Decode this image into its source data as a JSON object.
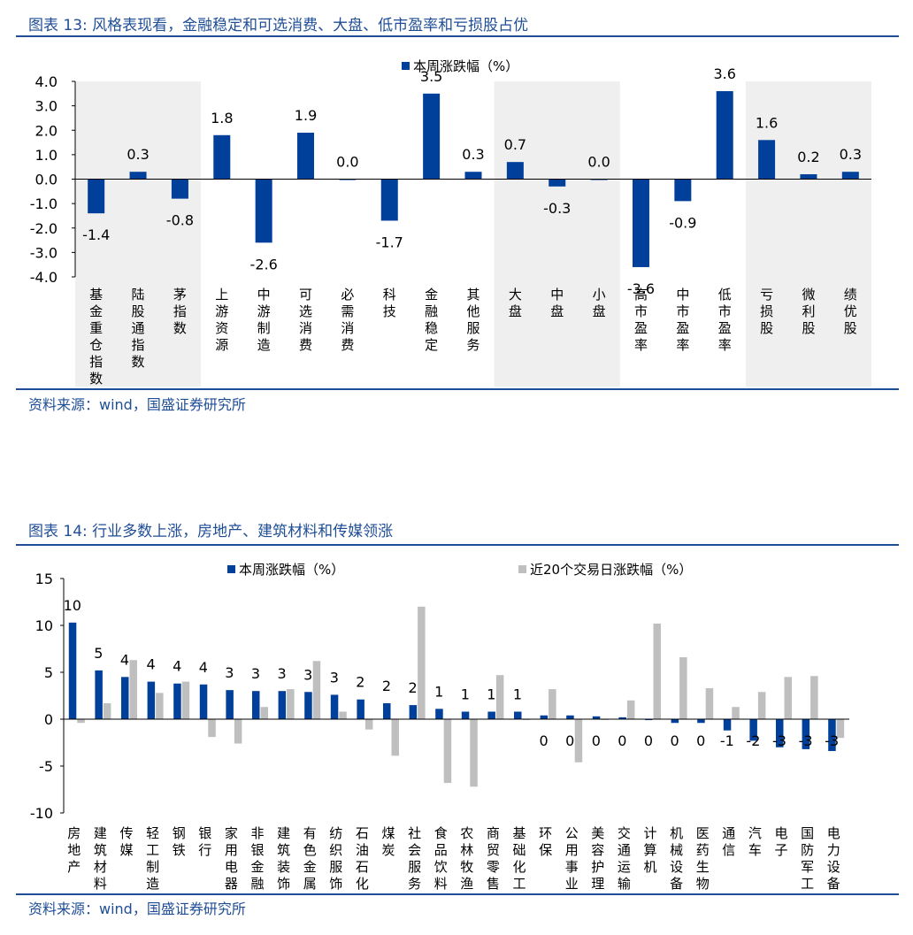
{
  "chart13": {
    "title": "图表 13:  风格表现看，金融稳定和可选消费、大盘、低市盈率和亏损股占优",
    "source": "资料来源：wind，国盛证券研究所",
    "chart_data": {
      "type": "bar",
      "legend": [
        "本周涨跌幅（%）"
      ],
      "categories": [
        "基金重仓指数",
        "陆股通指数",
        "茅指数",
        "上游资源",
        "中游制造",
        "可选消费",
        "必需消费",
        "科技",
        "金融稳定",
        "其他服务",
        "大盘",
        "中盘",
        "小盘",
        "高市盈率",
        "中市盈率",
        "低市盈率",
        "亏损股",
        "微利股",
        "绩优股"
      ],
      "values": [
        -1.4,
        0.3,
        -0.8,
        1.8,
        -2.6,
        1.9,
        0.0,
        -1.7,
        3.5,
        0.3,
        0.7,
        -0.3,
        0.0,
        -3.6,
        -0.9,
        3.6,
        1.6,
        0.2,
        0.3
      ],
      "labels": [
        "-1.4",
        "0.3",
        "-0.8",
        "1.8",
        "-2.6",
        "1.9",
        "0.0",
        "-1.7",
        "3.5",
        "0.3",
        "0.7",
        "-0.3",
        "0.0",
        "-3.6",
        "-0.9",
        "3.6",
        "1.6",
        "0.2",
        "0.3"
      ],
      "ylim": [
        -4,
        4
      ],
      "yticks": [
        "4.0",
        "3.0",
        "2.0",
        "1.0",
        "0.0",
        "-1.0",
        "-2.0",
        "-3.0",
        "-4.0"
      ],
      "ytick_values": [
        4,
        3,
        2,
        1,
        0,
        -1,
        -2,
        -3,
        -4
      ],
      "shaded_groups": [
        [
          0,
          2
        ],
        [
          10,
          12
        ],
        [
          16,
          18
        ]
      ],
      "colors": {
        "bar": "#003f9a",
        "shade": "#efefef"
      }
    }
  },
  "chart14": {
    "title": "图表 14:  行业多数上涨，房地产、建筑材料和传媒领涨",
    "source": "资料来源：wind，国盛证券研究所",
    "chart_data": {
      "type": "bar",
      "categories": [
        "房地产",
        "建筑材料",
        "传媒",
        "轻工制造",
        "钢铁",
        "银行",
        "家用电器",
        "非银金融",
        "建筑装饰",
        "有色金属",
        "纺织服饰",
        "石油石化",
        "煤炭",
        "社会服务",
        "食品饮料",
        "农林牧渔",
        "商贸零售",
        "基础化工",
        "环保",
        "公用事业",
        "美容护理",
        "交通运输",
        "计算机",
        "机械设备",
        "医药生物",
        "通信",
        "汽车",
        "电子",
        "国防军工",
        "电力设备"
      ],
      "series": [
        {
          "name": "本周涨跌幅（%）",
          "values": [
            10.3,
            5.2,
            4.5,
            4.0,
            3.8,
            3.7,
            3.1,
            3.0,
            3.0,
            2.9,
            2.6,
            2.1,
            1.7,
            1.5,
            1.1,
            0.8,
            0.8,
            0.8,
            0.4,
            0.4,
            0.3,
            0.2,
            -0.1,
            -0.4,
            -0.4,
            -1.2,
            -2.3,
            -3.0,
            -3.2,
            -3.4
          ],
          "labels": [
            "10",
            "5",
            "4",
            "4",
            "4",
            "4",
            "3",
            "3",
            "3",
            "3",
            "3",
            "2",
            "2",
            "2",
            "1",
            "1",
            "1",
            "1",
            "0",
            "0",
            "0",
            "0",
            "0",
            "0",
            "0",
            "-1",
            "-2",
            "-3",
            "-3",
            "-3"
          ]
        },
        {
          "name": "近20个交易日涨跌幅（%）",
          "values": [
            -0.4,
            1.7,
            6.3,
            2.8,
            4.0,
            -1.9,
            -2.6,
            1.3,
            3.2,
            6.2,
            0.8,
            -1.1,
            -3.9,
            12.0,
            -6.8,
            -7.2,
            4.7,
            0,
            3.2,
            -4.6,
            0,
            2.0,
            10.2,
            6.6,
            3.3,
            1.3,
            2.9,
            4.5,
            4.6,
            -2.0
          ]
        }
      ],
      "ylim": [
        -10,
        15
      ],
      "yticks": [
        "15",
        "10",
        "5",
        "0",
        "-5",
        "-10"
      ],
      "ytick_values": [
        15,
        10,
        5,
        0,
        -5,
        -10
      ],
      "colors": {
        "series1": "#003f9a",
        "series2": "#bfbfbf"
      }
    }
  }
}
